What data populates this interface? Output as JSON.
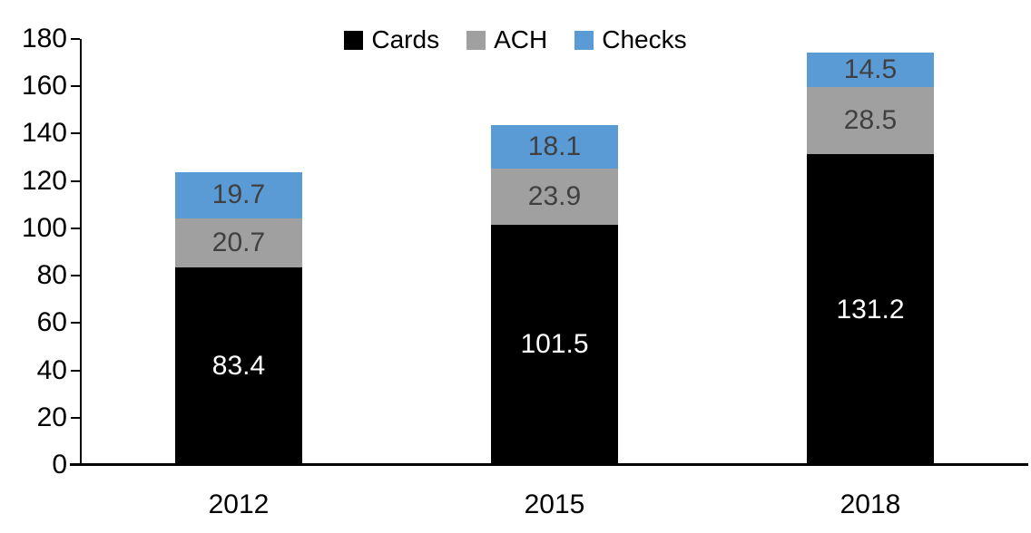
{
  "chart_data": {
    "type": "bar",
    "stacked": true,
    "title": "",
    "categories": [
      "2012",
      "2015",
      "2018"
    ],
    "series": [
      {
        "name": "Cards",
        "color": "#000000",
        "label_color": "#ffffff",
        "values": [
          83.4,
          101.5,
          131.2
        ]
      },
      {
        "name": "ACH",
        "color": "#A0A0A0",
        "label_color": "#404040",
        "values": [
          20.7,
          23.9,
          28.5
        ]
      },
      {
        "name": "Checks",
        "color": "#5B9BD5",
        "label_color": "#404040",
        "values": [
          19.7,
          18.1,
          14.5
        ]
      }
    ],
    "totals": [
      123.8,
      143.5,
      174.2
    ],
    "y_axis": {
      "min": 0,
      "max": 180,
      "step": 20
    },
    "x_axis_labels": [
      "2012",
      "2015",
      "2018"
    ],
    "legend_entries": [
      "Cards",
      "ACH",
      "Checks"
    ],
    "legend_position": "top-center",
    "grid": false,
    "axis_color": "#000000",
    "background": "#ffffff"
  }
}
